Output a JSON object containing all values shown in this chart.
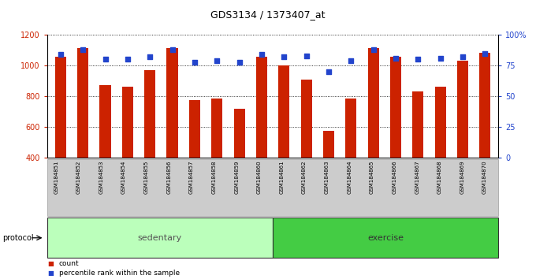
{
  "title": "GDS3134 / 1373407_at",
  "samples": [
    "GSM184851",
    "GSM184852",
    "GSM184853",
    "GSM184854",
    "GSM184855",
    "GSM184856",
    "GSM184857",
    "GSM184858",
    "GSM184859",
    "GSM184860",
    "GSM184861",
    "GSM184862",
    "GSM184863",
    "GSM184864",
    "GSM184865",
    "GSM184866",
    "GSM184867",
    "GSM184868",
    "GSM184869",
    "GSM184870"
  ],
  "counts": [
    1055,
    1115,
    872,
    864,
    968,
    1115,
    775,
    783,
    718,
    1060,
    1003,
    907,
    575,
    783,
    1115,
    1060,
    833,
    860,
    1030,
    1085
  ],
  "percentiles": [
    84,
    88,
    80,
    80,
    82,
    88,
    78,
    79,
    78,
    84,
    82,
    83,
    70,
    79,
    88,
    81,
    80,
    81,
    82,
    85
  ],
  "n_sedentary": 10,
  "n_exercise": 10,
  "bar_color": "#cc2200",
  "dot_color": "#2244cc",
  "ylim_left": [
    400,
    1200
  ],
  "ylim_right": [
    0,
    100
  ],
  "yticks_left": [
    400,
    600,
    800,
    1000,
    1200
  ],
  "ytick_labels_left": [
    "400",
    "600",
    "800",
    "1000",
    "1200"
  ],
  "yticks_right": [
    0,
    25,
    50,
    75,
    100
  ],
  "ytick_labels_right": [
    "0",
    "25",
    "50",
    "75",
    "100%"
  ],
  "grid_color": "#000000",
  "bg_color": "#ffffff",
  "sedentary_color": "#bbffbb",
  "exercise_color": "#44cc44",
  "legend_items": [
    "count",
    "percentile rank within the sample"
  ],
  "legend_colors": [
    "#cc2200",
    "#2244cc"
  ],
  "protocol_label": "protocol"
}
